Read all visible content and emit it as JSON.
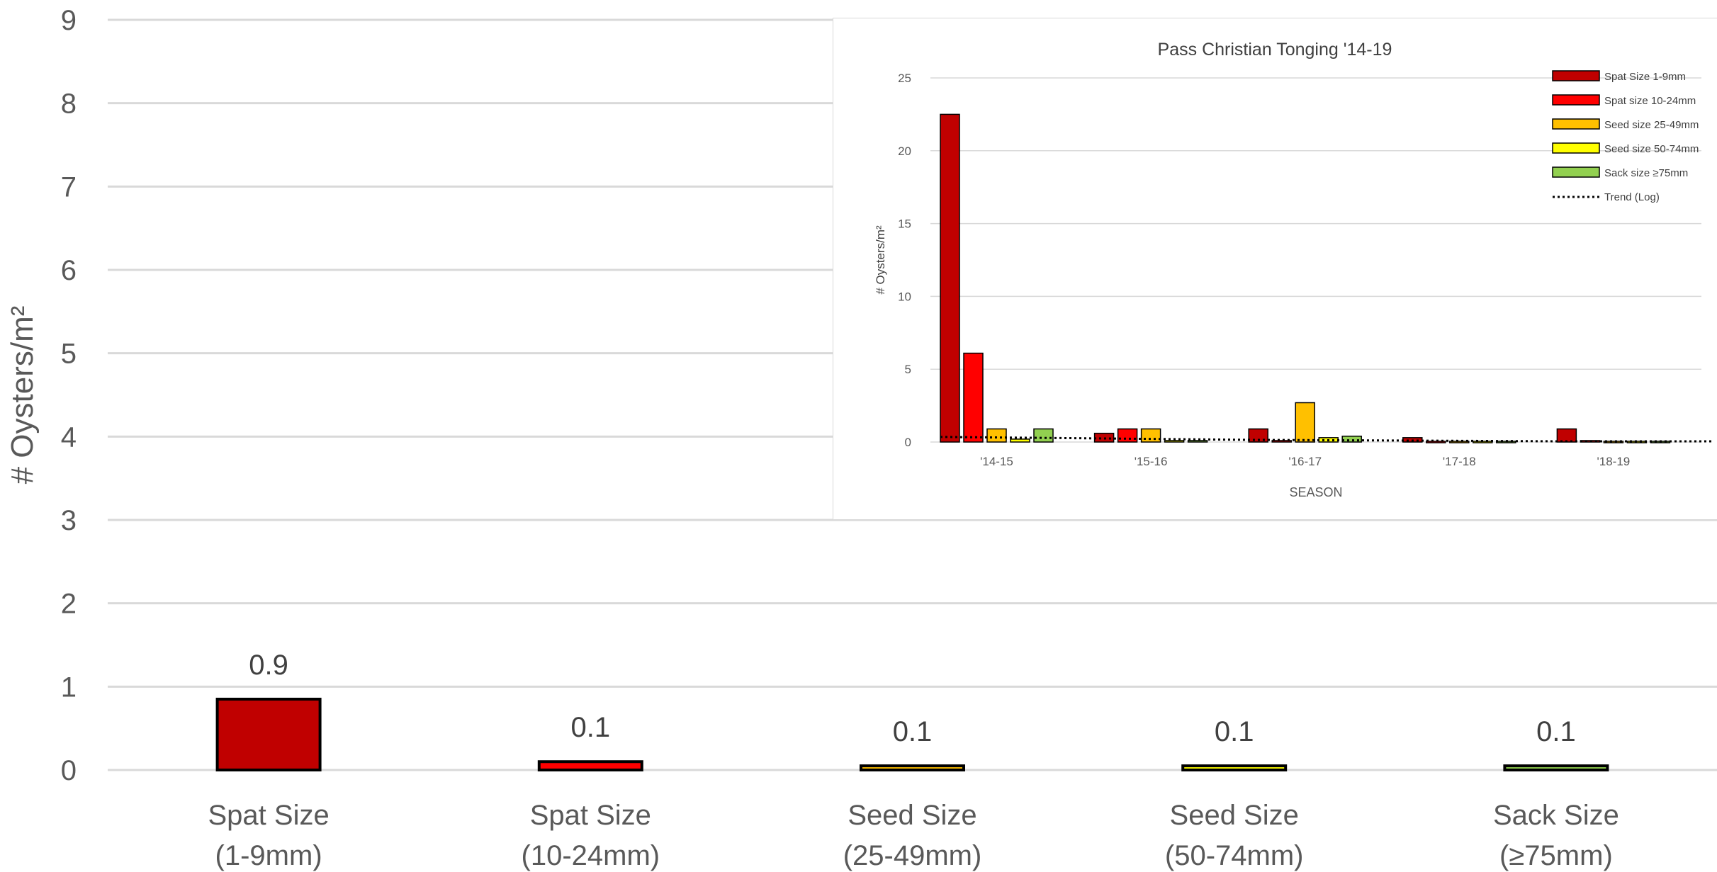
{
  "chart_data": [
    {
      "type": "bar",
      "title": "",
      "xlabel": "",
      "ylabel": "# Oysters/m²",
      "ylim": [
        0,
        9
      ],
      "yticks": [
        "0",
        "1",
        "2",
        "3",
        "4",
        "5",
        "6",
        "7",
        "8",
        "9"
      ],
      "grid": true,
      "categories": [
        [
          "Spat Size",
          "(1-9mm)"
        ],
        [
          "Spat Size",
          "(10-24mm)"
        ],
        [
          "Seed Size",
          "(25-49mm)"
        ],
        [
          "Seed Size",
          "(50-74mm)"
        ],
        [
          "Sack Size",
          "(≥75mm)"
        ]
      ],
      "values": [
        0.85,
        0.1,
        0.05,
        0.05,
        0.05
      ],
      "data_labels": [
        "0.9",
        "0.1",
        "0.1",
        "0.1",
        "0.1"
      ],
      "colors": [
        "#c00000",
        "#ff0000",
        "#ffc000",
        "#ffff00",
        "#92d050"
      ]
    },
    {
      "type": "bar",
      "title": "Pass Christian Tonging '14-19",
      "xlabel": "SEASON",
      "ylabel": "# Oysters/m²",
      "ylim": [
        0,
        25
      ],
      "yticks": [
        "0",
        "5",
        "10",
        "15",
        "20",
        "25"
      ],
      "grid": true,
      "legend_position": "top-right",
      "categories": [
        "'14-15",
        "'15-16",
        "'16-17",
        "'17-18",
        "'18-19"
      ],
      "series": [
        {
          "name": "Spat Size 1-9mm",
          "color": "#c00000",
          "values": [
            22.5,
            0.6,
            0.9,
            0.3,
            0.9
          ]
        },
        {
          "name": "Spat size 10-24mm",
          "color": "#ff0000",
          "values": [
            6.1,
            0.9,
            0.1,
            0.05,
            0.1
          ]
        },
        {
          "name": "Seed size 25-49mm",
          "color": "#ffc000",
          "values": [
            0.9,
            0.9,
            2.7,
            0.05,
            0.05
          ]
        },
        {
          "name": "Seed size 50-74mm",
          "color": "#ffff00",
          "values": [
            0.2,
            0.1,
            0.3,
            0.05,
            0.05
          ]
        },
        {
          "name": "Sack size ≥75mm",
          "color": "#92d050",
          "values": [
            0.9,
            0.1,
            0.4,
            0.05,
            0.05
          ]
        }
      ],
      "trend": {
        "name": "Trend (Log)",
        "values": [
          0.35,
          0.25,
          0.15,
          0.1,
          0.05
        ]
      }
    }
  ]
}
